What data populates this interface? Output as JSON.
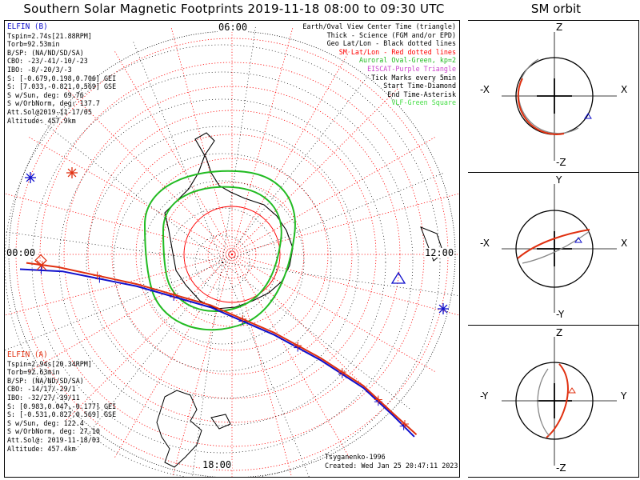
{
  "title": "Southern Solar Magnetic Footprints 2019-11-18 08:00 to 09:30 UTC",
  "orbit_title": "SM orbit",
  "time_labels": {
    "top": "06:00",
    "left": "00:00",
    "right": "12:00",
    "bottom": "18:00"
  },
  "elfin_b": {
    "name": "ELFIN (B)",
    "color": "#1010cc",
    "lines": [
      "Tspin=2.74s[21.88RPM]",
      "Torb=92.53min",
      "B/SP: (NA/ND/SD/SA)",
      "CBO: -23/-41/-10/-23",
      "IBO: -8/-20/3/-3",
      "S: [-0.679,0.198,0.706] GEI",
      "S: [7.033,-0.821,0.569] GSE",
      "S w/Sun, deg: 69.76",
      "S w/OrbNorm, deg: 137.7",
      "Att.Sol@2019-11-17/05",
      "Altitude: 457.9km"
    ]
  },
  "elfin_a": {
    "name": "ELFIN (A)",
    "color": "#e03010",
    "lines": [
      "Tspin=2.94s[20.34RPM]",
      "Torb=92.63min",
      "B/SP: (NA/ND/SD/SA)",
      "CBO: -14/17/-29/1",
      "IBO: -32/27/-39/11",
      "S: [0.983,0.047,-0.177] GEI",
      "S: [-0.531,0.827,0.569] GSE",
      "S w/Sun, deg: 122.4",
      "S w/OrbNorm, deg: 27.10",
      "Att.Sol@: 2019-11-18/03",
      "Altitude: 457.4km"
    ]
  },
  "legend": [
    {
      "text": "Earth/Oval View Center Time (triangle)",
      "color": "#000000"
    },
    {
      "text": "Thick - Science (FGM and/or EPD)",
      "color": "#000000"
    },
    {
      "text": "Geo Lat/Lon - Black dotted lines",
      "color": "#000000"
    },
    {
      "text": "SM Lat/Lon - Red dotted lines",
      "color": "#ff0000"
    },
    {
      "text": "Auroral Oval-Green, kp=2",
      "color": "#22bb22"
    },
    {
      "text": "EISCAT-Purple Triangle",
      "color": "#cc44cc"
    },
    {
      "text": "Tick Marks every 5min",
      "color": "#000000"
    },
    {
      "text": "Start Time-Diamond",
      "color": "#000000"
    },
    {
      "text": "End Time-Asterisk",
      "color": "#000000"
    },
    {
      "text": "VLF-Green Square",
      "color": "#44dd44"
    }
  ],
  "credits": {
    "model": "Tsyganenko-1996",
    "created": "Created: Wed Jan 25 20:47:11 2023"
  },
  "orbit_panels": [
    {
      "top": "Z",
      "bottom": "-Z",
      "left": "-X",
      "right": "X"
    },
    {
      "top": "Y",
      "bottom": "-Y",
      "left": "-X",
      "right": "X"
    },
    {
      "top": "Z",
      "bottom": "-Z",
      "left": "-Y",
      "right": "Y"
    }
  ],
  "chart_data": {
    "type": "scatter",
    "projection": "south-polar stereographic, SM coordinates",
    "time_range": [
      "2019-11-18 08:00",
      "2019-11-18 09:30"
    ],
    "colors": {
      "elfin_a": "#e03010",
      "elfin_b": "#1010cc",
      "auroral_oval": "#22bb22",
      "sm_grid": "#ff0000",
      "geo_grid": "#000000"
    },
    "grid": {
      "sm_lat_lon": "red dotted",
      "geo_lat_lon": "black dotted"
    },
    "series": [
      {
        "name": "ELFIN (B)",
        "values": [
          [
            -1.0,
            0.07
          ],
          [
            -0.8,
            0.08
          ],
          [
            -0.45,
            0.15
          ],
          [
            -0.1,
            0.25
          ],
          [
            0.2,
            0.38
          ],
          [
            0.42,
            0.5
          ],
          [
            0.62,
            0.63
          ],
          [
            0.76,
            0.76
          ],
          [
            0.86,
            0.86
          ]
        ]
      },
      {
        "name": "ELFIN (A)",
        "values": [
          [
            -0.97,
            0.04
          ],
          [
            -0.82,
            0.06
          ],
          [
            -0.45,
            0.14
          ],
          [
            -0.1,
            0.24
          ],
          [
            0.2,
            0.37
          ],
          [
            0.42,
            0.49
          ],
          [
            0.62,
            0.62
          ],
          [
            0.76,
            0.75
          ],
          [
            0.87,
            0.85
          ]
        ]
      }
    ]
  }
}
